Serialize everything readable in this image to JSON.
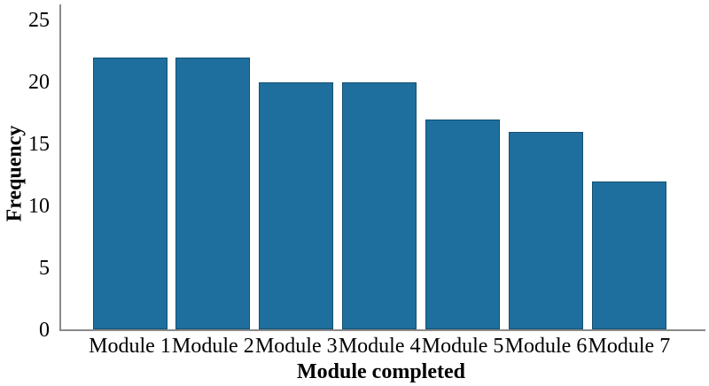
{
  "figure": {
    "bar_fill": "#1f6f9e",
    "bar_border": "#14506f",
    "axis_color": "#8a8a8a",
    "text_color": "#000000"
  },
  "chart_data": {
    "type": "bar",
    "categories": [
      "Module 1",
      "Module 2",
      "Module 3",
      "Module 4",
      "Module 5",
      "Module 6",
      "Module 7"
    ],
    "values": [
      22,
      22,
      20,
      20,
      17,
      16,
      12
    ],
    "xlabel": "Module completed",
    "ylabel": "Frequency",
    "yticks": [
      0,
      5,
      10,
      15,
      20,
      25
    ],
    "ylim": [
      0,
      26.3
    ],
    "grid": false,
    "legend": "none"
  }
}
